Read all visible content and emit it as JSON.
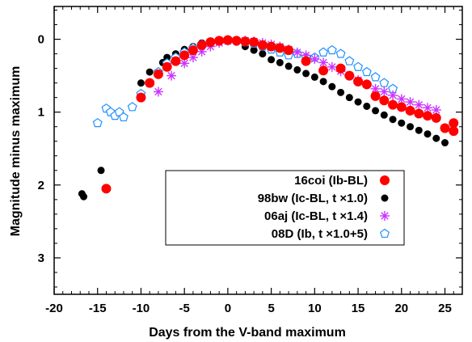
{
  "chart_data": {
    "type": "scatter",
    "xlabel": "Days from the V-band maximum",
    "ylabel": "Magnitude minus maximum",
    "xlim": [
      -20,
      27
    ],
    "ylim": [
      3.5,
      -0.45
    ],
    "y_inverted": true,
    "xticks": [
      -20,
      -15,
      -10,
      -5,
      0,
      5,
      10,
      15,
      20,
      25
    ],
    "yticks": [
      0,
      1,
      2,
      3
    ],
    "grid": false,
    "legend_position": "center-right",
    "series": [
      {
        "name": "16coi (Ib-BL)",
        "marker": "filled-circle-large",
        "color": "#ff0000",
        "x": [
          -14,
          -10,
          -9,
          -8,
          -7,
          -6,
          -5,
          -4,
          -3,
          -2,
          -1,
          0,
          1,
          2,
          3,
          4,
          5,
          6,
          7,
          9,
          11,
          13,
          14,
          15,
          16,
          17,
          18,
          19,
          20,
          21,
          22,
          23,
          24,
          25,
          26,
          26
        ],
        "y": [
          2.05,
          0.8,
          0.6,
          0.48,
          0.38,
          0.3,
          0.22,
          0.15,
          0.08,
          0.04,
          0.02,
          0.01,
          0.02,
          0.03,
          0.04,
          0.08,
          0.1,
          0.12,
          0.15,
          0.3,
          0.43,
          0.4,
          0.5,
          0.58,
          0.62,
          0.78,
          0.84,
          0.9,
          0.93,
          0.98,
          1.02,
          1.05,
          1.08,
          1.22,
          1.15,
          1.26
        ]
      },
      {
        "name": "98bw (Ic-BL, t ×1.0)",
        "marker": "filled-circle",
        "color": "#000000",
        "x": [
          -16.8,
          -16.6,
          -14.6,
          -10,
          -9,
          -7.5,
          -7,
          -6,
          -5,
          -4,
          -3,
          -2,
          -1,
          0,
          1,
          2,
          3,
          4,
          5,
          6,
          7,
          8,
          9,
          10,
          11,
          12,
          13,
          14,
          15,
          16,
          17,
          18,
          19,
          20,
          21,
          22,
          23,
          24,
          25
        ],
        "y": [
          2.12,
          2.16,
          1.8,
          0.6,
          0.45,
          0.32,
          0.25,
          0.2,
          0.14,
          0.1,
          0.05,
          0.03,
          0.02,
          0.01,
          0.04,
          0.1,
          0.15,
          0.2,
          0.28,
          0.32,
          0.37,
          0.42,
          0.47,
          0.52,
          0.58,
          0.65,
          0.73,
          0.8,
          0.86,
          0.92,
          0.98,
          1.04,
          1.1,
          1.15,
          1.2,
          1.25,
          1.3,
          1.36,
          1.42
        ]
      },
      {
        "name": "06aj (Ic-BL, t ×1.4)",
        "marker": "asterisk",
        "color": "#cc33ff",
        "x": [
          -8,
          -6.5,
          -5,
          -4,
          -3,
          -2,
          -1,
          0,
          1,
          2,
          3,
          4,
          5,
          6,
          7,
          8,
          9,
          10,
          11,
          12,
          13,
          14,
          15,
          16,
          17,
          18,
          19,
          20,
          21,
          22,
          23,
          24
        ],
        "y": [
          0.72,
          0.5,
          0.33,
          0.25,
          0.17,
          0.1,
          0.05,
          0.02,
          0.02,
          0.02,
          0.03,
          0.05,
          0.07,
          0.1,
          0.14,
          0.18,
          0.22,
          0.27,
          0.32,
          0.38,
          0.44,
          0.5,
          0.56,
          0.62,
          0.68,
          0.72,
          0.77,
          0.82,
          0.86,
          0.9,
          0.94,
          0.97
        ]
      },
      {
        "name": "08D (Ib, t ×1.0+5)",
        "marker": "open-pentagon",
        "color": "#1e90ff",
        "x": [
          -15,
          -14,
          -13.5,
          -13,
          -12.5,
          -12,
          -11,
          -10,
          -9,
          -8,
          -7,
          -6,
          -5,
          -4,
          -3,
          -2,
          -1,
          0,
          1,
          2,
          3,
          4,
          5,
          6,
          7,
          8,
          9,
          10,
          11,
          12,
          13,
          14,
          15,
          16,
          17,
          18,
          19
        ],
        "y": [
          1.15,
          0.95,
          1.0,
          1.05,
          1.0,
          1.07,
          0.93,
          0.75,
          0.6,
          0.45,
          0.33,
          0.25,
          0.18,
          0.12,
          0.07,
          0.05,
          0.03,
          0.02,
          0.02,
          0.04,
          0.06,
          0.1,
          0.14,
          0.18,
          0.22,
          0.2,
          0.25,
          0.25,
          0.18,
          0.15,
          0.2,
          0.3,
          0.38,
          0.45,
          0.52,
          0.6,
          0.68
        ]
      }
    ]
  }
}
